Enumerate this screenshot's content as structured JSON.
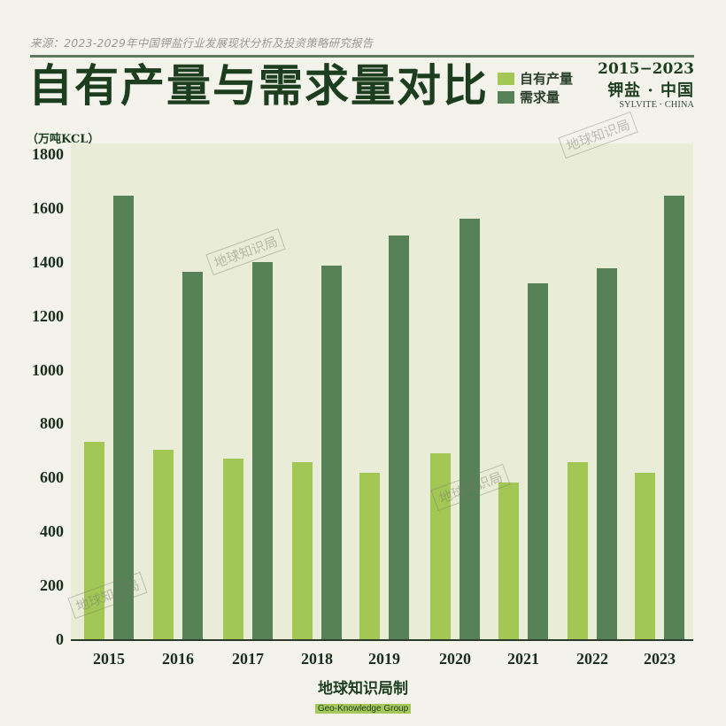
{
  "header": {
    "source": "来源：2023-2029年中国钾盐行业发展现状分析及投资策略研究报告",
    "title": "自有产量与需求量对比"
  },
  "legend": [
    {
      "label": "自有产量",
      "color": "#a3c754"
    },
    {
      "label": "需求量",
      "color": "#578156"
    }
  ],
  "badge": {
    "years": "2015−2023",
    "cn": "钾盐 · 中国",
    "en": "SYLVITE · CHINA"
  },
  "watermark": "地球知识局",
  "footer": {
    "cn": "地球知识局制",
    "en": "Geo-Knowledge Group"
  },
  "chart_data": {
    "type": "bar",
    "title": "自有产量与需求量对比",
    "ylabel": "（万吨KCL）",
    "xlabel": "",
    "categories": [
      "2015",
      "2016",
      "2017",
      "2018",
      "2019",
      "2020",
      "2021",
      "2022",
      "2023"
    ],
    "series": [
      {
        "name": "自有产量",
        "color": "#a3c754",
        "values": [
          736,
          705,
          672,
          660,
          621,
          694,
          585,
          660,
          621
        ]
      },
      {
        "name": "需求量",
        "color": "#578156",
        "values": [
          1650,
          1366,
          1404,
          1390,
          1502,
          1563,
          1324,
          1381,
          1650
        ]
      }
    ],
    "yticks": [
      "0",
      "200",
      "400",
      "600",
      "800",
      "1000",
      "1200",
      "1400",
      "1600",
      "1800"
    ],
    "ylim": [
      0,
      1800
    ],
    "grid": false,
    "legend_position": "top-right"
  }
}
